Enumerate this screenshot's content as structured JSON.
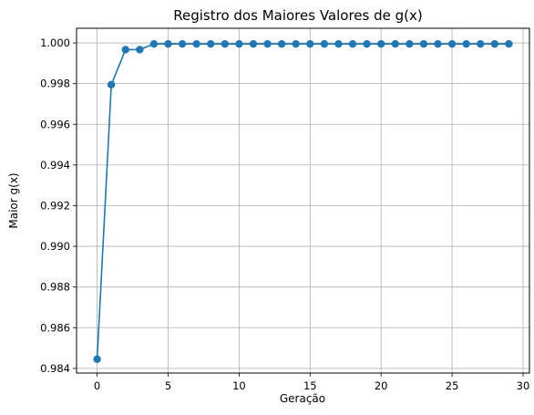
{
  "chart_data": {
    "type": "line",
    "title": "Registro dos Maiores Valores de g(x)",
    "xlabel": "Geração",
    "ylabel": "Maior g(x)",
    "grid": true,
    "xlim": [
      -1.45,
      30.45
    ],
    "ylim": [
      0.98377,
      1.00072
    ],
    "xticks": [
      0,
      5,
      10,
      15,
      20,
      25,
      30
    ],
    "xtick_labels": [
      "0",
      "5",
      "10",
      "15",
      "20",
      "25",
      "30"
    ],
    "yticks": [
      0.984,
      0.986,
      0.988,
      0.99,
      0.992,
      0.994,
      0.996,
      0.998,
      1.0
    ],
    "ytick_labels": [
      "0.984",
      "0.986",
      "0.988",
      "0.990",
      "0.992",
      "0.994",
      "0.996",
      "0.998",
      "1.000"
    ],
    "series": [
      {
        "color": "#1f77b4",
        "marker": "circle",
        "x": [
          0,
          1,
          2,
          3,
          4,
          5,
          6,
          7,
          8,
          9,
          10,
          11,
          12,
          13,
          14,
          15,
          16,
          17,
          18,
          19,
          20,
          21,
          22,
          23,
          24,
          25,
          26,
          27,
          28,
          29
        ],
        "y": [
          0.98445,
          0.99795,
          0.99967,
          0.99967,
          0.99995,
          0.99995,
          0.99995,
          0.99995,
          0.99995,
          0.99995,
          0.99995,
          0.99995,
          0.99995,
          0.99995,
          0.99995,
          0.99995,
          0.99995,
          0.99995,
          0.99995,
          0.99995,
          0.99995,
          0.99995,
          0.99995,
          0.99995,
          0.99995,
          0.99995,
          0.99995,
          0.99995,
          0.99995,
          0.99995
        ]
      }
    ]
  }
}
